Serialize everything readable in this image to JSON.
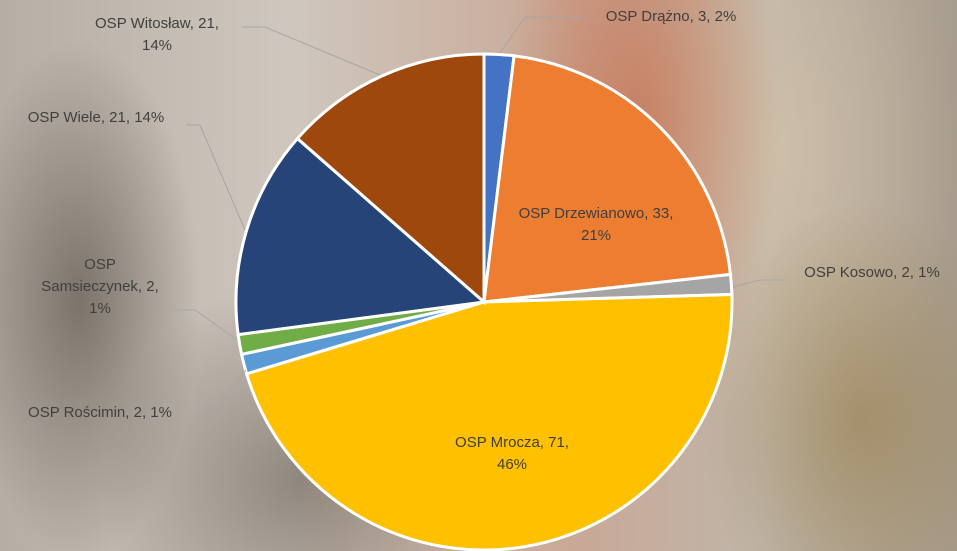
{
  "chart_data": {
    "type": "pie",
    "values": [
      3,
      33,
      2,
      71,
      2,
      2,
      21,
      21
    ],
    "value_labels": [
      "OSP Drążno, 3, 2%",
      "OSP Drzewianowo, 33, 21%",
      "OSP Kosowo, 2, 1%",
      "OSP Mrocza, 71, 46%",
      "OSP Rościmin, 2, 1%",
      "OSP Samsieczynek, 2, 1%",
      "OSP Wiele, 21, 14%",
      "OSP Witosław, 21, 14%"
    ],
    "colors": [
      "#4472c4",
      "#ed7d31",
      "#a5a5a5",
      "#ffc000",
      "#5b9bd5",
      "#70ad47",
      "#264478",
      "#9e480e"
    ]
  }
}
